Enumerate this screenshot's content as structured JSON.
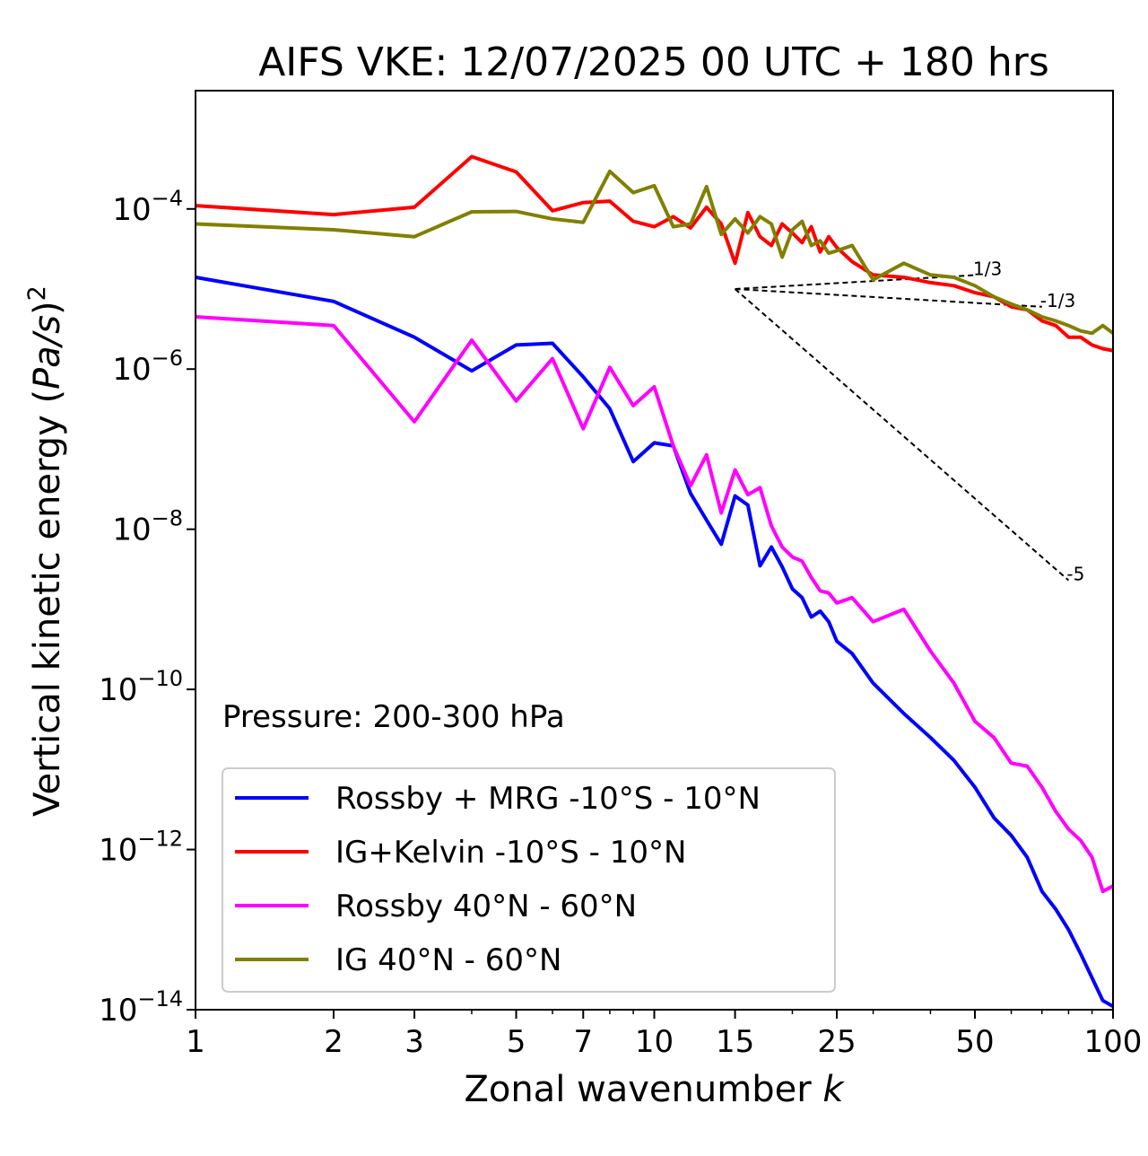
{
  "chart_data": {
    "type": "line",
    "title": "AIFS VKE: 12/07/2025 00 UTC + 180 hrs",
    "xlabel": "Zonal wavenumber",
    "xlabel_symbol": "k",
    "ylabel": "Vertical kinetic energy (",
    "ylabel_symbol": "Pa/s",
    "ylabel_end": ")",
    "ylabel_power": "2",
    "xscale": "log",
    "yscale": "log",
    "xlim": [
      1,
      100
    ],
    "ylim": [
      1e-14,
      0.003
    ],
    "xticks": [
      {
        "value": 1,
        "label": "1"
      },
      {
        "value": 2,
        "label": "2"
      },
      {
        "value": 3,
        "label": "3"
      },
      {
        "value": 5,
        "label": "5"
      },
      {
        "value": 7,
        "label": "7"
      },
      {
        "value": 10,
        "label": "10"
      },
      {
        "value": 15,
        "label": "15"
      },
      {
        "value": 25,
        "label": "25"
      },
      {
        "value": 50,
        "label": "50"
      },
      {
        "value": 100,
        "label": "100"
      }
    ],
    "yticks": [
      {
        "value": 0.0001,
        "base": "10",
        "exp": "−4"
      },
      {
        "value": 1e-06,
        "base": "10",
        "exp": "−6"
      },
      {
        "value": 1e-08,
        "base": "10",
        "exp": "−8"
      },
      {
        "value": 1e-10,
        "base": "10",
        "exp": "−10"
      },
      {
        "value": 1e-12,
        "base": "10",
        "exp": "−12"
      },
      {
        "value": 1e-14,
        "base": "10",
        "exp": "−14"
      }
    ],
    "annotation": "Pressure: 200-300 hPa",
    "legend_position": "bottom-left",
    "grid": false,
    "reference_lines": [
      {
        "label": "1/3",
        "x": [
          15,
          50
        ],
        "y": [
          1e-05,
          1.49e-05
        ]
      },
      {
        "label": "-1/3",
        "x": [
          15,
          70
        ],
        "y": [
          1e-05,
          6e-06
        ]
      },
      {
        "label": "-5",
        "x": [
          15,
          80
        ],
        "y": [
          1e-05,
          2.3e-09
        ]
      }
    ],
    "series": [
      {
        "name": "Rossby + MRG -10°S - 10°N",
        "color": "#0000ff",
        "x": [
          1,
          2,
          3,
          4,
          5,
          6,
          7,
          8,
          9,
          10,
          11,
          12,
          13,
          14,
          15,
          16,
          17,
          18,
          19,
          20,
          21,
          22,
          23,
          24,
          25,
          27,
          30,
          35,
          40,
          45,
          50,
          55,
          60,
          65,
          70,
          75,
          80,
          85,
          90,
          95,
          100
        ],
        "y": [
          1.4e-05,
          7e-06,
          2.5e-06,
          9.5e-07,
          2e-06,
          2.1e-06,
          8e-07,
          3.2e-07,
          7e-08,
          1.2e-07,
          1.1e-07,
          2.8e-08,
          1.3e-08,
          6.5e-09,
          2.6e-08,
          2e-08,
          3.5e-09,
          6e-09,
          3.4e-09,
          1.8e-09,
          1.4e-09,
          8e-10,
          9.5e-10,
          7e-10,
          4e-10,
          2.8e-10,
          1.2e-10,
          5e-11,
          2.5e-11,
          1.3e-11,
          6e-12,
          2.5e-12,
          1.5e-12,
          8e-13,
          3e-13,
          1.8e-13,
          1e-13,
          5e-14,
          2.5e-14,
          1.3e-14,
          1.1e-14
        ]
      },
      {
        "name": "IG+Kelvin -10°S - 10°N",
        "color": "#ff0000",
        "x": [
          1,
          2,
          3,
          4,
          5,
          6,
          7,
          8,
          9,
          10,
          11,
          12,
          13,
          14,
          15,
          16,
          17,
          18,
          19,
          20,
          21,
          22,
          23,
          24,
          25,
          27,
          30,
          35,
          40,
          45,
          50,
          55,
          60,
          65,
          70,
          75,
          80,
          85,
          90,
          95,
          100
        ],
        "y": [
          0.00011,
          8.5e-05,
          0.000105,
          0.00045,
          0.00029,
          9.5e-05,
          0.00012,
          0.000125,
          7e-05,
          6e-05,
          8e-05,
          5.8e-05,
          0.000105,
          6.5e-05,
          2.1e-05,
          9e-05,
          4.5e-05,
          3.5e-05,
          6.5e-05,
          5e-05,
          3.8e-05,
          6e-05,
          2.9e-05,
          4.5e-05,
          3.3e-05,
          2.2e-05,
          1.5e-05,
          1.4e-05,
          1.2e-05,
          1.1e-05,
          9e-06,
          8e-06,
          6e-06,
          5.5e-06,
          4e-06,
          3.5e-06,
          2.5e-06,
          2.5e-06,
          2e-06,
          1.8e-06,
          1.7e-06
        ]
      },
      {
        "name": "Rossby 40°N - 60°N",
        "color": "#ff00ff",
        "x": [
          1,
          2,
          3,
          4,
          5,
          6,
          7,
          8,
          9,
          10,
          11,
          12,
          13,
          14,
          15,
          16,
          17,
          18,
          19,
          20,
          21,
          22,
          23,
          24,
          25,
          27,
          30,
          35,
          40,
          45,
          50,
          55,
          60,
          65,
          70,
          75,
          80,
          85,
          90,
          95,
          100
        ],
        "y": [
          4.5e-06,
          3.5e-06,
          2.2e-07,
          2.3e-06,
          4e-07,
          1.35e-06,
          1.8e-07,
          1.05e-06,
          3.5e-07,
          6e-07,
          1.1e-07,
          3.5e-08,
          8.5e-08,
          1.6e-08,
          5.5e-08,
          2.7e-08,
          3.3e-08,
          1.1e-08,
          6e-09,
          4.5e-09,
          4e-09,
          2.5e-09,
          1.7e-09,
          1.6e-09,
          1.2e-09,
          1.4e-09,
          7e-10,
          1e-09,
          3e-10,
          1.2e-10,
          4e-11,
          2.5e-11,
          1.2e-11,
          1.1e-11,
          6e-12,
          3e-12,
          1.8e-12,
          1.3e-12,
          8e-13,
          3e-13,
          3.5e-13
        ]
      },
      {
        "name": "IG 40°N - 60°N",
        "color": "#808000",
        "x": [
          1,
          2,
          3,
          4,
          5,
          6,
          7,
          8,
          9,
          10,
          11,
          12,
          13,
          14,
          15,
          16,
          17,
          18,
          19,
          20,
          21,
          22,
          23,
          24,
          25,
          27,
          30,
          35,
          40,
          45,
          50,
          55,
          60,
          65,
          70,
          75,
          80,
          85,
          90,
          95,
          100
        ],
        "y": [
          6.5e-05,
          5.5e-05,
          4.5e-05,
          9.2e-05,
          9.3e-05,
          7.5e-05,
          6.8e-05,
          0.000295,
          0.00016,
          0.000195,
          6e-05,
          6.5e-05,
          0.00019,
          4.8e-05,
          7.5e-05,
          5e-05,
          8e-05,
          6.5e-05,
          2.5e-05,
          5.5e-05,
          7e-05,
          3.5e-05,
          4e-05,
          2.8e-05,
          3e-05,
          3.5e-05,
          1.3e-05,
          2.1e-05,
          1.5e-05,
          1.4e-05,
          1.1e-05,
          8e-06,
          6.5e-06,
          5.5e-06,
          4.5e-06,
          4e-06,
          3.5e-06,
          3e-06,
          2.8e-06,
          3.5e-06,
          2.8e-06
        ]
      }
    ]
  }
}
